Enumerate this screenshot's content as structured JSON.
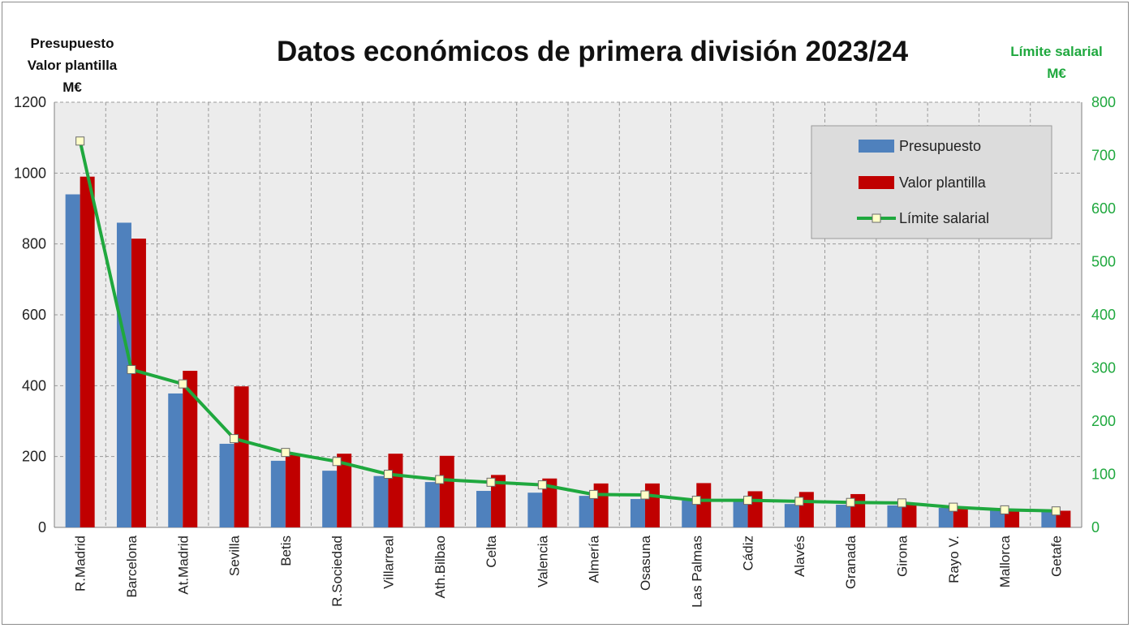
{
  "chart_data": {
    "type": "bar",
    "title": "Datos económicos de primera división 2023/24",
    "ylabel_left": [
      "Presupuesto",
      "Valor plantilla",
      "M€"
    ],
    "ylabel_right": [
      "Límite salarial",
      "M€"
    ],
    "ylim_left": [
      0,
      1200
    ],
    "ylim_right": [
      0,
      800
    ],
    "yticks_left": [
      "0",
      "200",
      "400",
      "600",
      "800",
      "1000",
      "1200"
    ],
    "yticks_right": [
      "0",
      "100",
      "200",
      "300",
      "400",
      "500",
      "600",
      "700",
      "800"
    ],
    "grid": true,
    "legend_position": "top-right",
    "categories": [
      "R.Madrid",
      "Barcelona",
      "At.Madrid",
      "Sevilla",
      "Betis",
      "R.Sociedad",
      "Villarreal",
      "Ath.Bilbao",
      "Celta",
      "Valencia",
      "Almería",
      "Osasuna",
      "Las Palmas",
      "Cádiz",
      "Alavés",
      "Granada",
      "Girona",
      "Rayo V.",
      "Mallorca",
      "Getafe"
    ],
    "series": [
      {
        "name": "Presupuesto",
        "type": "bar",
        "axis": "left",
        "color": "#4f81bd",
        "values": [
          940,
          860,
          378,
          236,
          188,
          160,
          145,
          128,
          103,
          98,
          89,
          80,
          76,
          74,
          66,
          64,
          62,
          55,
          54,
          48
        ]
      },
      {
        "name": "Valor plantilla",
        "type": "bar",
        "axis": "left",
        "color": "#c00000",
        "values": [
          990,
          815,
          442,
          398,
          204,
          208,
          208,
          202,
          148,
          138,
          124,
          124,
          125,
          102,
          100,
          94,
          68,
          58,
          48,
          47
        ]
      },
      {
        "name": "Límite salarial",
        "type": "line",
        "axis": "right",
        "color": "#1fa83e",
        "values": [
          727,
          297,
          270,
          167,
          141,
          124,
          100,
          90,
          85,
          80,
          62,
          61,
          51,
          51,
          49,
          47,
          46,
          38,
          33,
          31
        ]
      }
    ]
  }
}
